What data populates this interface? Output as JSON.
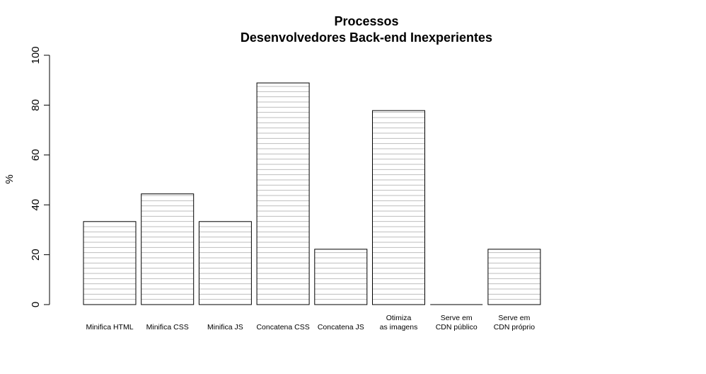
{
  "chart_data": {
    "type": "bar",
    "title": [
      "Processos",
      "Desenvolvedores Back-end Inexperientes"
    ],
    "ylabel": "%",
    "xlabel": "",
    "ylim": [
      0,
      100
    ],
    "yticks": [
      "0",
      "20",
      "40",
      "60",
      "80",
      "100"
    ],
    "categories": [
      [
        "Minifica HTML"
      ],
      [
        "Minifica CSS"
      ],
      [
        "Minifica JS"
      ],
      [
        "Concatena CSS"
      ],
      [
        "Concatena JS"
      ],
      [
        "Otimiza",
        "as imagens"
      ],
      [
        "Serve em",
        "CDN público"
      ],
      [
        "Serve em",
        "CDN próprio"
      ]
    ],
    "values": [
      33.3,
      44.4,
      33.3,
      88.9,
      22.2,
      77.8,
      0,
      22.2
    ],
    "grid": "horizontal lines inside bars",
    "bar_fill": "#ffffff",
    "bar_stroke": "#000000",
    "grid_color": "#bebebe"
  }
}
